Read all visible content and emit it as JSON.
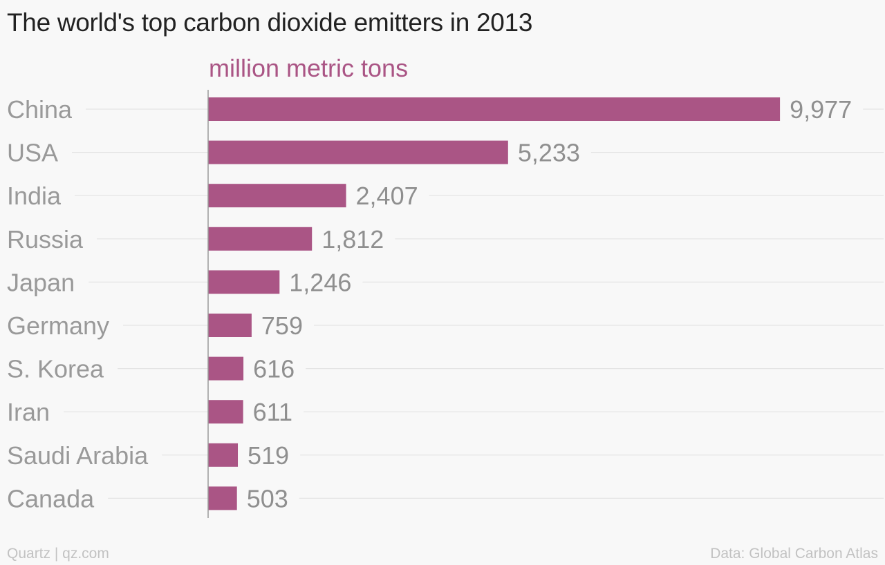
{
  "title": "The world's top carbon dioxide emitters in 2013",
  "unit_label": "million metric tons",
  "source_left": "Quartz | qz.com",
  "source_right": "Data: Global Carbon Atlas",
  "colors": {
    "bar": "#aa5585",
    "unit_label": "#aa5585",
    "category_label": "#999999",
    "value_label": "#8f8f8f",
    "gridline": "#e4e4e4",
    "axis": "#999999"
  },
  "chart_data": {
    "type": "bar",
    "orientation": "horizontal",
    "title": "The world's top carbon dioxide emitters in 2013",
    "xlabel": "million metric tons",
    "ylabel": "",
    "categories": [
      "China",
      "USA",
      "India",
      "Russia",
      "Japan",
      "Germany",
      "S. Korea",
      "Iran",
      "Saudi Arabia",
      "Canada"
    ],
    "values": [
      9977,
      5233,
      2407,
      1812,
      1246,
      759,
      616,
      611,
      519,
      503
    ],
    "value_labels": [
      "9,977",
      "5,233",
      "2,407",
      "1,812",
      "1,246",
      "759",
      "616",
      "611",
      "519",
      "503"
    ],
    "xlim": [
      0,
      10000
    ],
    "grid": true,
    "legend": "none"
  }
}
